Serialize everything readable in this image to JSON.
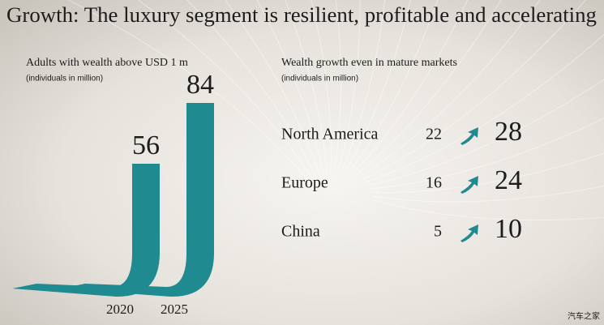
{
  "title": "Growth: The luxury segment is resilient, profitable and accelerating",
  "watermark": "汽车之家",
  "chart_data": [
    {
      "type": "ribbon",
      "title": "Adults with wealth above USD 1 m",
      "subtitle": "(individuals in million)",
      "categories": [
        "2020",
        "2025"
      ],
      "values": [
        56,
        84
      ],
      "color": "#1f8a90"
    },
    {
      "type": "growth",
      "title": "Wealth growth even in mature markets",
      "subtitle": "(individuals in million)",
      "categories": [
        "North America",
        "Europe",
        "China"
      ],
      "series": [
        {
          "values": [
            22,
            16,
            5
          ]
        },
        {
          "values": [
            28,
            24,
            10
          ]
        }
      ],
      "color": "#1f8a90"
    }
  ]
}
